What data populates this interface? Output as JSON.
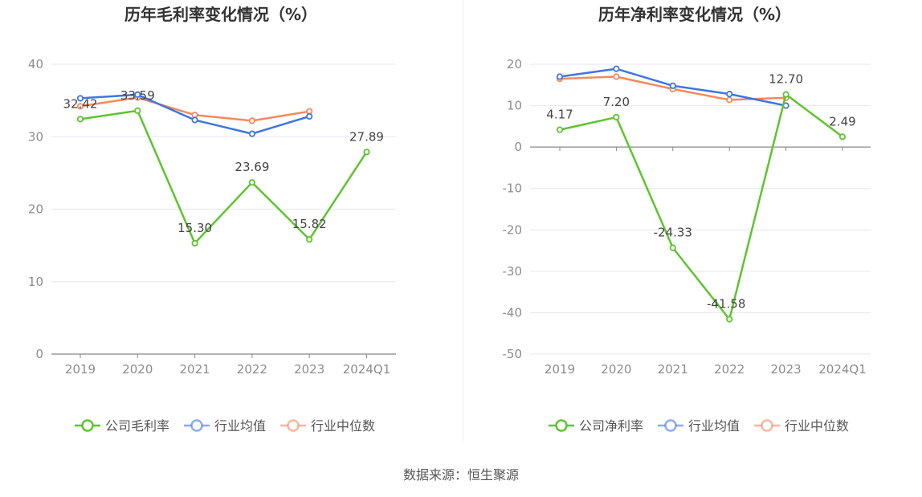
{
  "colors": {
    "company": "#5ec42e",
    "industry_avg": "#3f76e0",
    "industry_median": "#f4895f",
    "grid": "#e6e6ef",
    "axis": "#888888",
    "tick_text": "#8c8c8c",
    "label_text": "#444444",
    "title_text": "#333333"
  },
  "legend": {
    "company_gross": "公司毛利率",
    "company_net": "公司净利率",
    "industry_avg": "行业均值",
    "industry_median": "行业中位数"
  },
  "source": "数据来源：恒生聚源",
  "chart_data": [
    {
      "type": "line",
      "title": "历年毛利率变化情况（%）",
      "categories": [
        "2019",
        "2020",
        "2021",
        "2022",
        "2023",
        "2024Q1"
      ],
      "ylim": [
        0,
        40
      ],
      "yticks": [
        0,
        10,
        20,
        30,
        40
      ],
      "grid": true,
      "legend_position": "bottom",
      "series": [
        {
          "name": "公司毛利率",
          "key": "company",
          "values": [
            32.42,
            33.59,
            15.3,
            23.69,
            15.82,
            27.89
          ],
          "labels": [
            "32.42",
            "33.59",
            "15.30",
            "23.69",
            "15.82",
            "27.89"
          ]
        },
        {
          "name": "行业均值",
          "key": "industry_avg",
          "values": [
            35.3,
            35.8,
            32.3,
            30.4,
            32.8,
            null
          ]
        },
        {
          "name": "行业中位数",
          "key": "industry_median",
          "values": [
            34.2,
            35.4,
            33.0,
            32.2,
            33.5,
            null
          ]
        }
      ]
    },
    {
      "type": "line",
      "title": "历年净利率变化情况（%）",
      "categories": [
        "2019",
        "2020",
        "2021",
        "2022",
        "2023",
        "2024Q1"
      ],
      "ylim": [
        -50,
        20
      ],
      "yticks": [
        -50,
        -40,
        -30,
        -20,
        -10,
        0,
        10,
        20
      ],
      "grid": true,
      "legend_position": "bottom",
      "series": [
        {
          "name": "公司净利率",
          "key": "company",
          "values": [
            4.17,
            7.2,
            -24.33,
            -41.58,
            12.7,
            2.49
          ],
          "labels": [
            "4.17",
            "7.20",
            "-24.33",
            "-41.58",
            "12.70",
            "2.49"
          ]
        },
        {
          "name": "行业均值",
          "key": "industry_avg",
          "values": [
            17.0,
            18.9,
            14.8,
            12.8,
            10.0,
            null
          ]
        },
        {
          "name": "行业中位数",
          "key": "industry_median",
          "values": [
            16.5,
            17.0,
            14.0,
            11.4,
            11.9,
            null
          ]
        }
      ]
    }
  ]
}
